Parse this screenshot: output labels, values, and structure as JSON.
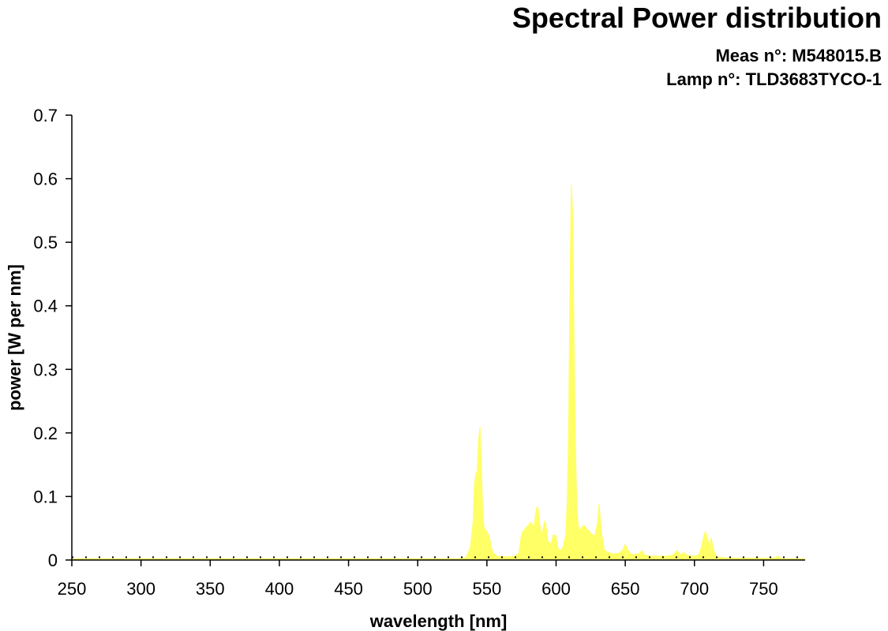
{
  "header": {
    "title": "Spectral Power distribution",
    "meas": "Meas n°: M548015.B",
    "lamp": "Lamp n°: TLD3683TYCO-1"
  },
  "chart_data": {
    "type": "area",
    "title": "Spectral Power distribution",
    "xlabel": "wavelength [nm]",
    "ylabel": "power [W per nm]",
    "xlim": [
      250,
      780
    ],
    "ylim": [
      0,
      0.7
    ],
    "xticks": [
      250,
      300,
      350,
      400,
      450,
      500,
      550,
      600,
      650,
      700,
      750
    ],
    "yticks": [
      0,
      0.1,
      0.2,
      0.3,
      0.4,
      0.5,
      0.6,
      0.7
    ],
    "fill_color": "#ffff66",
    "grid": false,
    "x": [
      250,
      530,
      535,
      538,
      540,
      541,
      542,
      543,
      544,
      545,
      546,
      547,
      548,
      550,
      552,
      553,
      555,
      558,
      560,
      565,
      570,
      573,
      575,
      576,
      578,
      580,
      582,
      584,
      585,
      586,
      587,
      588,
      589,
      590,
      591,
      592,
      593,
      594,
      596,
      597,
      598,
      600,
      601,
      603,
      605,
      607,
      608,
      609,
      610,
      611,
      612,
      613,
      614,
      615,
      616,
      617,
      618,
      620,
      622,
      624,
      626,
      628,
      630,
      631,
      633,
      635,
      640,
      645,
      648,
      650,
      652,
      655,
      660,
      662,
      664,
      668,
      675,
      680,
      685,
      687,
      690,
      692,
      695,
      700,
      703,
      705,
      707,
      708,
      710,
      711,
      712,
      713,
      714,
      716,
      720,
      725,
      740,
      758,
      760,
      762,
      765,
      780
    ],
    "y": [
      0.002,
      0.002,
      0.004,
      0.02,
      0.06,
      0.12,
      0.135,
      0.14,
      0.19,
      0.21,
      0.15,
      0.075,
      0.05,
      0.045,
      0.035,
      0.02,
      0.01,
      0.005,
      0.006,
      0.005,
      0.006,
      0.01,
      0.04,
      0.045,
      0.05,
      0.055,
      0.06,
      0.05,
      0.07,
      0.083,
      0.082,
      0.06,
      0.045,
      0.04,
      0.055,
      0.062,
      0.05,
      0.03,
      0.025,
      0.03,
      0.04,
      0.038,
      0.02,
      0.015,
      0.02,
      0.04,
      0.09,
      0.2,
      0.42,
      0.59,
      0.55,
      0.35,
      0.18,
      0.085,
      0.055,
      0.045,
      0.05,
      0.055,
      0.05,
      0.045,
      0.04,
      0.038,
      0.06,
      0.088,
      0.04,
      0.015,
      0.01,
      0.01,
      0.015,
      0.025,
      0.015,
      0.008,
      0.01,
      0.015,
      0.008,
      0.006,
      0.006,
      0.006,
      0.008,
      0.015,
      0.008,
      0.012,
      0.007,
      0.006,
      0.008,
      0.02,
      0.04,
      0.045,
      0.03,
      0.02,
      0.035,
      0.025,
      0.015,
      0.005,
      0.004,
      0.003,
      0.003,
      0.003,
      0.006,
      0.003,
      0.002,
      0.002
    ]
  }
}
